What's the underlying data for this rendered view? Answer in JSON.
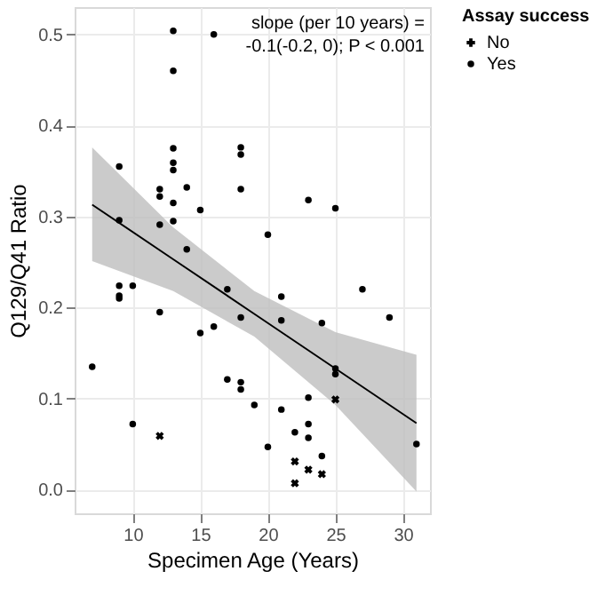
{
  "chart_data": {
    "type": "scatter",
    "xlabel": "Specimen Age (Years)",
    "ylabel": "Q129/Q41 Ratio",
    "legend_title": "Assay success",
    "annotations": [
      "slope (per 10 years) =",
      "-0.1(-0.2, 0); P < 0.001"
    ],
    "xlim": [
      5.7,
      32
    ],
    "ylim": [
      -0.026,
      0.53
    ],
    "xticks": [
      10,
      15,
      20,
      25,
      30
    ],
    "yticks": [
      {
        "value": 0,
        "label": "0.0"
      },
      0.1,
      0.2,
      0.3,
      0.4,
      0.5
    ],
    "grid": true,
    "legend": "right",
    "series": [
      {
        "type": "line",
        "color": "#000000",
        "x": [
          7,
          13,
          19,
          25,
          31
        ],
        "values": [
          0.313,
          0.253,
          0.193,
          0.133,
          0.073
        ],
        "lower": [
          0.251,
          0.218,
          0.168,
          0.093,
          -0.002
        ],
        "upper": [
          0.376,
          0.288,
          0.218,
          0.173,
          0.148
        ]
      },
      {
        "name": "No",
        "color": "#000000",
        "marker": "cross",
        "x": [
          12,
          22,
          22,
          23,
          24,
          25
        ],
        "values": [
          0.059,
          0.031,
          0.007,
          0.022,
          0.017,
          0.099
        ]
      },
      {
        "name": "Yes",
        "color": "#000000",
        "marker": "circle",
        "x": [
          7,
          9,
          9,
          9,
          9,
          9,
          10,
          10,
          12,
          12,
          12,
          12,
          13,
          13,
          13,
          13,
          13,
          13,
          13,
          14,
          14,
          15,
          15,
          16,
          16,
          17,
          17,
          18,
          18,
          18,
          18,
          18,
          18,
          19,
          20,
          20,
          21,
          21,
          21,
          22,
          23,
          23,
          23,
          23,
          24,
          24,
          25,
          25,
          25,
          27,
          29,
          31
        ],
        "values": [
          0.135,
          0.355,
          0.296,
          0.224,
          0.213,
          0.21,
          0.224,
          0.072,
          0.33,
          0.322,
          0.291,
          0.195,
          0.504,
          0.46,
          0.375,
          0.359,
          0.351,
          0.315,
          0.295,
          0.332,
          0.264,
          0.307,
          0.172,
          0.5,
          0.179,
          0.22,
          0.121,
          0.376,
          0.368,
          0.33,
          0.189,
          0.118,
          0.11,
          0.093,
          0.28,
          0.047,
          0.212,
          0.186,
          0.088,
          0.063,
          0.318,
          0.101,
          0.072,
          0.057,
          0.183,
          0.037,
          0.309,
          0.133,
          0.127,
          0.22,
          0.189,
          0.05
        ]
      }
    ]
  }
}
